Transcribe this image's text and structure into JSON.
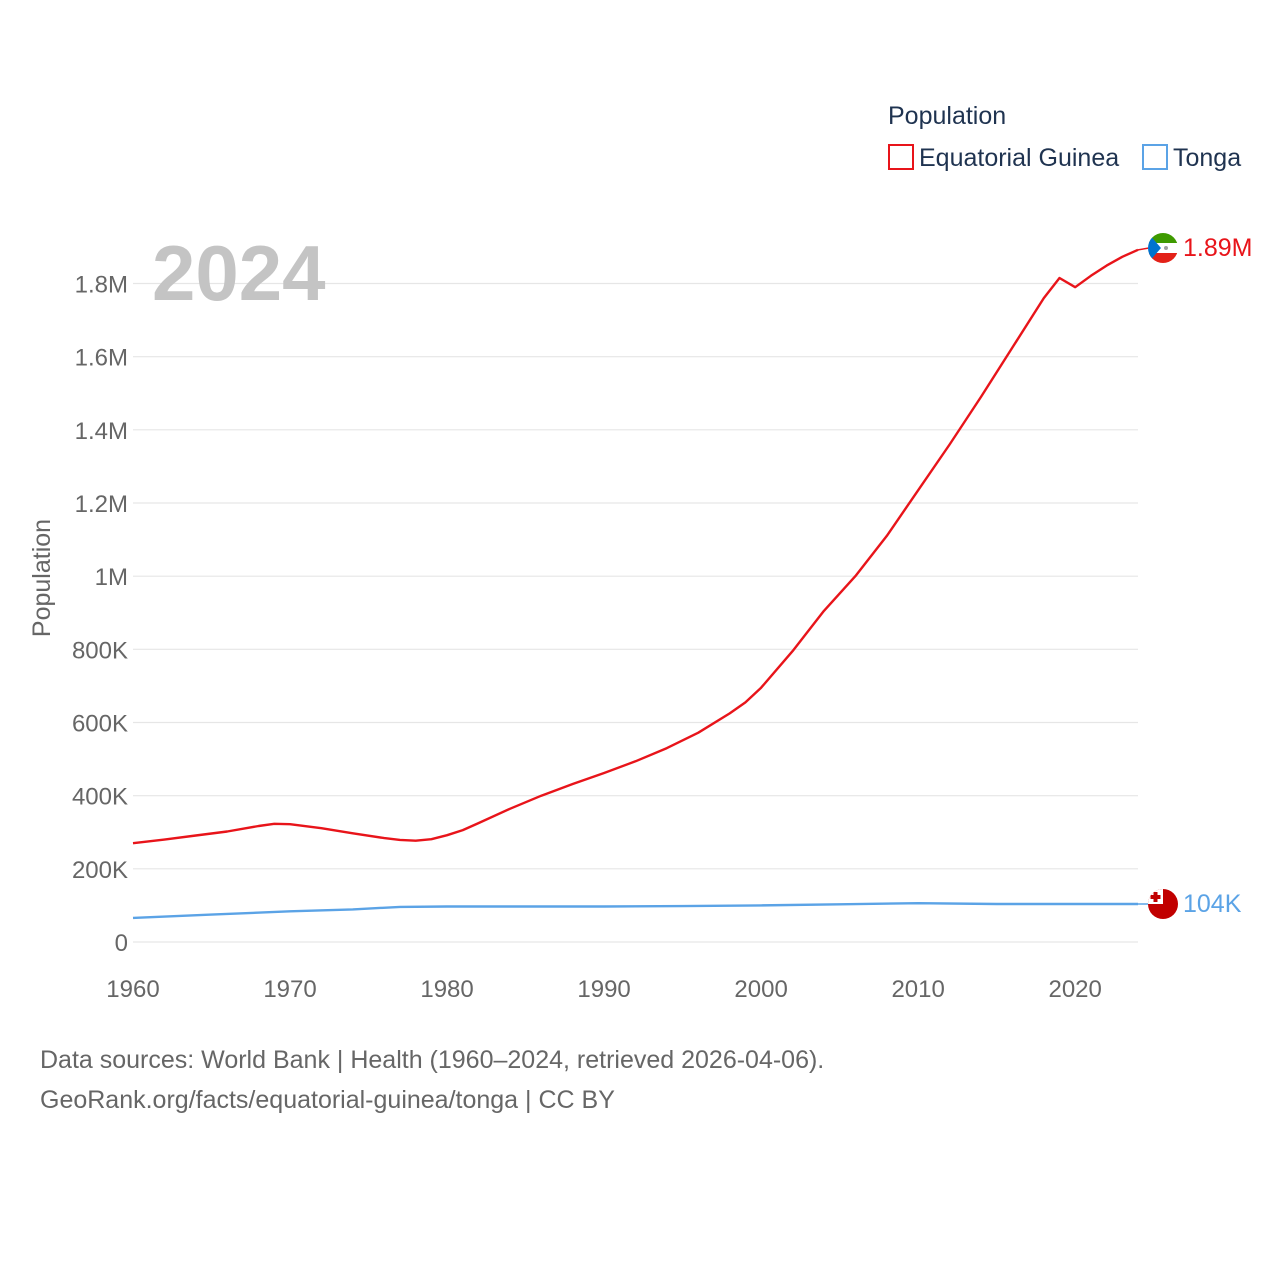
{
  "chart_data": {
    "type": "line",
    "title": "2024",
    "ylabel": "Population",
    "xlabel": "",
    "xlim": [
      1960,
      2024
    ],
    "ylim": [
      0,
      1900000
    ],
    "x_ticks": [
      {
        "value": 1960,
        "label": "1960"
      },
      {
        "value": 1970,
        "label": "1970"
      },
      {
        "value": 1980,
        "label": "1980"
      },
      {
        "value": 1990,
        "label": "1990"
      },
      {
        "value": 2000,
        "label": "2000"
      },
      {
        "value": 2010,
        "label": "2010"
      },
      {
        "value": 2020,
        "label": "2020"
      }
    ],
    "y_ticks": [
      {
        "value": 0,
        "label": "0"
      },
      {
        "value": 200000,
        "label": "200K"
      },
      {
        "value": 400000,
        "label": "400K"
      },
      {
        "value": 600000,
        "label": "600K"
      },
      {
        "value": 800000,
        "label": "800K"
      },
      {
        "value": 1000000,
        "label": "1M"
      },
      {
        "value": 1200000,
        "label": "1.2M"
      },
      {
        "value": 1400000,
        "label": "1.4M"
      },
      {
        "value": 1600000,
        "label": "1.6M"
      },
      {
        "value": 1800000,
        "label": "1.8M"
      }
    ],
    "legend": {
      "title": "Population",
      "position": "top-right"
    },
    "series": [
      {
        "name": "Equatorial Guinea",
        "color": "#e8141a",
        "end_label": "1.89M",
        "flag_icon": "equatorial-guinea-flag-icon",
        "points": [
          [
            1960,
            270000
          ],
          [
            1962,
            280000
          ],
          [
            1964,
            291000
          ],
          [
            1966,
            302000
          ],
          [
            1968,
            317000
          ],
          [
            1969,
            323000
          ],
          [
            1970,
            322000
          ],
          [
            1972,
            311000
          ],
          [
            1974,
            297000
          ],
          [
            1976,
            284000
          ],
          [
            1977,
            279000
          ],
          [
            1978,
            277000
          ],
          [
            1979,
            281000
          ],
          [
            1980,
            292000
          ],
          [
            1981,
            306000
          ],
          [
            1982,
            325000
          ],
          [
            1984,
            364000
          ],
          [
            1986,
            400000
          ],
          [
            1988,
            432000
          ],
          [
            1990,
            462000
          ],
          [
            1992,
            494000
          ],
          [
            1994,
            530000
          ],
          [
            1996,
            572000
          ],
          [
            1998,
            625000
          ],
          [
            1999,
            655000
          ],
          [
            2000,
            695000
          ],
          [
            2002,
            795000
          ],
          [
            2004,
            905000
          ],
          [
            2006,
            1000000
          ],
          [
            2008,
            1110000
          ],
          [
            2010,
            1235000
          ],
          [
            2012,
            1360000
          ],
          [
            2014,
            1490000
          ],
          [
            2016,
            1625000
          ],
          [
            2018,
            1760000
          ],
          [
            2019,
            1815000
          ],
          [
            2020,
            1790000
          ],
          [
            2021,
            1821000
          ],
          [
            2022,
            1849000
          ],
          [
            2023,
            1873000
          ],
          [
            2024,
            1892000
          ]
        ]
      },
      {
        "name": "Tonga",
        "color": "#5ba3e6",
        "end_label": "104K",
        "flag_icon": "tonga-flag-icon",
        "points": [
          [
            1960,
            66000
          ],
          [
            1965,
            75000
          ],
          [
            1970,
            84000
          ],
          [
            1974,
            89000
          ],
          [
            1977,
            96000
          ],
          [
            1980,
            97000
          ],
          [
            1985,
            97000
          ],
          [
            1990,
            97000
          ],
          [
            1995,
            98000
          ],
          [
            2000,
            100000
          ],
          [
            2005,
            103000
          ],
          [
            2010,
            106000
          ],
          [
            2015,
            104000
          ],
          [
            2020,
            104000
          ],
          [
            2024,
            104000
          ]
        ]
      }
    ]
  },
  "footer": {
    "line1": "Data sources: World Bank | Health (1960–2024, retrieved 2026-04-06).",
    "line2": "GeoRank.org/facts/equatorial-guinea/tonga | CC BY"
  }
}
